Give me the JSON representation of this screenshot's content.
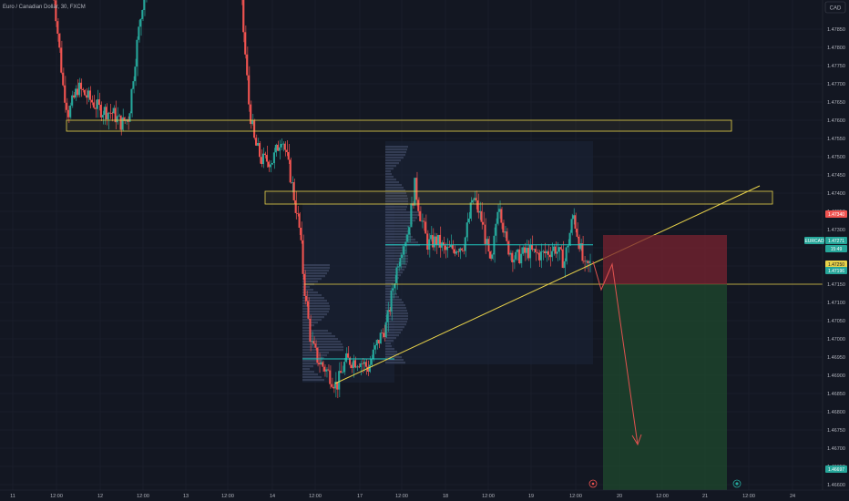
{
  "header": {
    "title": "Euro / Canadian Dollar, 30, FXCM"
  },
  "currency_badge": "CAD",
  "colors": {
    "background": "#131722",
    "grid": "#1e2230",
    "bull": "#26a69a",
    "bear": "#ef5350",
    "zone": "#e8d24a",
    "trendline": "#e8d24a",
    "stop_zone": "#7a2330",
    "target_zone": "#1f4a2e",
    "profile_box": "#1b2538",
    "poc_line": "#20c9c1",
    "arrow": "#e0524f"
  },
  "chart_data": {
    "type": "candlestick",
    "symbol": "EURCAD",
    "timeframe": "30",
    "ylim": [
      1.46,
      1.48
    ],
    "y_ticks": [
      "1.47850",
      "1.47800",
      "1.47750",
      "1.47700",
      "1.47650",
      "1.47600",
      "1.47550",
      "1.47500",
      "1.47450",
      "1.47400",
      "1.47350",
      "1.47300",
      "1.47250",
      "1.47200",
      "1.47150",
      "1.47100",
      "1.47050",
      "1.47000",
      "1.46950",
      "1.46900",
      "1.46850",
      "1.46800",
      "1.46750",
      "1.46700",
      "1.46650",
      "1.46600"
    ],
    "x_ticks": [
      "11",
      "12:00",
      "12",
      "12:00",
      "13",
      "12:00",
      "14",
      "12:00",
      "17",
      "12:00",
      "18",
      "12:00",
      "19",
      "12:00",
      "20",
      "12:00",
      "21",
      "12:00",
      "24"
    ],
    "price_tags": [
      {
        "label": "1.47340",
        "price": 1.4734,
        "color": "#ef5350",
        "text_color": "#ffffff"
      },
      {
        "label": "EURCAD",
        "price": 1.47271,
        "color": "#26a69a",
        "text_color": "#ffffff"
      },
      {
        "label": "1.47271",
        "price": 1.47271,
        "color": "#26a69a",
        "text_color": "#ffffff"
      },
      {
        "label": "15:49",
        "price": 1.47235,
        "color": "#26a69a",
        "text_color": "#ffffff"
      },
      {
        "label": "1.47250",
        "price": 1.4721,
        "color": "#e8d24a",
        "text_color": "#131722"
      },
      {
        "label": "1.47196",
        "price": 1.47185,
        "color": "#26a69a",
        "text_color": "#ffffff"
      },
      {
        "label": "1.46697",
        "price": 1.46615,
        "color": "#26a69a",
        "text_color": "#ffffff"
      }
    ],
    "zones": [
      {
        "name": "upper-resistance-zone",
        "price_top": 1.4766,
        "price_bottom": 1.4763
      },
      {
        "name": "mid-resistance-zone",
        "price_top": 1.47465,
        "price_bottom": 1.4743
      }
    ],
    "horizontal_level": 1.4721,
    "poc_levels": [
      1.47318,
      1.47005
    ],
    "trade": {
      "direction": "short",
      "entry": 1.4721,
      "stop": 1.47345,
      "target": 1.4663
    },
    "candles_visible": true
  },
  "footer": {
    "goto_icon": "goto-realtime-icon"
  }
}
